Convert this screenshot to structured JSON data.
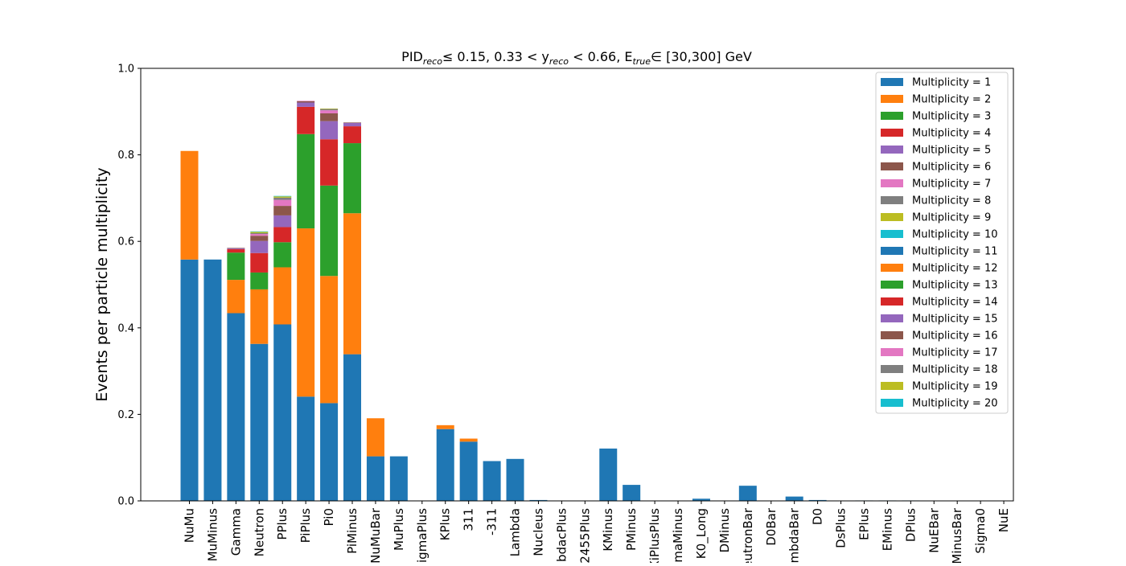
{
  "chart_data": {
    "type": "bar",
    "stacked": true,
    "title": {
      "pre": "PID",
      "pre_sub": "reco",
      "part1": "≤  0.15, 0.33 < y",
      "part1_sub": "reco",
      "part2": " < 0.66, E",
      "part2_sub": "true",
      "part3": "∈  [30,300] GeV"
    },
    "xlabel": "",
    "ylabel": "Events per particle multiplicity",
    "ylim": [
      0,
      1.0
    ],
    "yticks": [
      "0.0",
      "0.2",
      "0.4",
      "0.6",
      "0.8",
      "1.0"
    ],
    "grid": false,
    "legend_position": "top-right",
    "categories": [
      "NuMu",
      "MuMinus",
      "Gamma",
      "Neutron",
      "PPlus",
      "PiPlus",
      "Pi0",
      "PiMinus",
      "NuMuBar",
      "MuPlus",
      "SigmaPlus",
      "KPlus",
      "311",
      "-311",
      "Lambda",
      "Nucleus",
      "LambdacPlus",
      "2455Plus",
      "KMinus",
      "PMinus",
      "XiPlusPlus",
      "SigmaMinus",
      "K0_Long",
      "DMinus",
      "NeutronBar",
      "D0Bar",
      "LambdaBar",
      "D0",
      "DsPlus",
      "EPlus",
      "EMinus",
      "DPlus",
      "NuEBar",
      "XiMinusBar",
      "Sigma0",
      "NuE"
    ],
    "series": [
      {
        "name": "Multiplicity = 1",
        "color": "#1f77b4",
        "values": [
          0.558,
          0.558,
          0.434,
          0.363,
          0.408,
          0.241,
          0.226,
          0.339,
          0.103,
          0.103,
          0,
          0.166,
          0.137,
          0.092,
          0.097,
          0.002,
          0,
          0,
          0.121,
          0.037,
          0,
          0,
          0.005,
          0,
          0.035,
          0,
          0.01,
          0.002,
          0,
          0.001,
          0.001,
          0.001,
          0,
          0,
          0,
          0
        ]
      },
      {
        "name": "Multiplicity = 2",
        "color": "#ff7f0e",
        "values": [
          0.251,
          0,
          0.077,
          0.126,
          0.132,
          0.389,
          0.294,
          0.326,
          0.088,
          0,
          0,
          0.009,
          0.007,
          0,
          0,
          0,
          0,
          0,
          0,
          0,
          0,
          0,
          0,
          0,
          0,
          0,
          0,
          0,
          0,
          0,
          0,
          0,
          0,
          0,
          0,
          0
        ]
      },
      {
        "name": "Multiplicity = 3",
        "color": "#2ca02c",
        "values": [
          0,
          0,
          0.063,
          0.039,
          0.058,
          0.218,
          0.209,
          0.162,
          0,
          0,
          0,
          0,
          0,
          0,
          0,
          0,
          0,
          0,
          0,
          0,
          0,
          0,
          0,
          0,
          0,
          0,
          0,
          0,
          0,
          0,
          0,
          0,
          0,
          0,
          0,
          0
        ]
      },
      {
        "name": "Multiplicity = 4",
        "color": "#d62728",
        "values": [
          0,
          0,
          0.008,
          0.045,
          0.035,
          0.063,
          0.107,
          0.039,
          0,
          0,
          0,
          0,
          0,
          0,
          0,
          0,
          0,
          0,
          0,
          0,
          0,
          0,
          0,
          0,
          0,
          0,
          0,
          0,
          0,
          0,
          0,
          0,
          0,
          0,
          0,
          0
        ]
      },
      {
        "name": "Multiplicity = 5",
        "color": "#9467bd",
        "values": [
          0,
          0,
          0.002,
          0.028,
          0.027,
          0.01,
          0.042,
          0.008,
          0,
          0,
          0,
          0,
          0,
          0,
          0,
          0,
          0,
          0,
          0,
          0,
          0,
          0,
          0,
          0,
          0,
          0,
          0,
          0,
          0,
          0,
          0,
          0,
          0,
          0,
          0,
          0
        ]
      },
      {
        "name": "Multiplicity = 6",
        "color": "#8c564b",
        "values": [
          0,
          0,
          0.001,
          0.012,
          0.022,
          0.003,
          0.018,
          0.001,
          0,
          0,
          0,
          0,
          0,
          0,
          0,
          0,
          0,
          0,
          0,
          0,
          0,
          0,
          0,
          0,
          0,
          0,
          0,
          0,
          0,
          0,
          0,
          0,
          0,
          0,
          0,
          0
        ]
      },
      {
        "name": "Multiplicity = 7",
        "color": "#e377c2",
        "values": [
          0,
          0,
          0,
          0.004,
          0.014,
          0.001,
          0.007,
          0,
          0,
          0,
          0,
          0,
          0,
          0,
          0,
          0,
          0,
          0,
          0,
          0,
          0,
          0,
          0,
          0,
          0,
          0,
          0,
          0,
          0,
          0,
          0,
          0,
          0,
          0,
          0,
          0
        ]
      },
      {
        "name": "Multiplicity = 8",
        "color": "#7f7f7f",
        "values": [
          0,
          0,
          0,
          0.002,
          0.005,
          0,
          0.003,
          0,
          0,
          0,
          0,
          0,
          0,
          0,
          0,
          0,
          0,
          0,
          0,
          0,
          0,
          0,
          0,
          0,
          0,
          0,
          0,
          0,
          0,
          0,
          0,
          0,
          0,
          0,
          0,
          0
        ]
      },
      {
        "name": "Multiplicity = 9",
        "color": "#bcbd22",
        "values": [
          0,
          0,
          0,
          0.003,
          0.003,
          0,
          0.001,
          0,
          0,
          0,
          0,
          0,
          0,
          0,
          0,
          0,
          0,
          0,
          0,
          0,
          0,
          0,
          0,
          0,
          0,
          0,
          0,
          0,
          0,
          0,
          0,
          0,
          0,
          0,
          0,
          0
        ]
      },
      {
        "name": "Multiplicity = 10",
        "color": "#17becf",
        "values": [
          0,
          0,
          0,
          0.001,
          0.001,
          0,
          0,
          0,
          0,
          0,
          0,
          0,
          0,
          0,
          0,
          0,
          0,
          0,
          0,
          0,
          0,
          0,
          0,
          0,
          0,
          0,
          0,
          0,
          0,
          0,
          0,
          0,
          0,
          0,
          0,
          0
        ]
      },
      {
        "name": "Multiplicity = 11",
        "color": "#1f77b4",
        "values": [
          0,
          0,
          0,
          0,
          0,
          0,
          0,
          0,
          0,
          0,
          0,
          0,
          0,
          0,
          0,
          0,
          0,
          0,
          0,
          0,
          0,
          0,
          0,
          0,
          0,
          0,
          0,
          0,
          0,
          0,
          0,
          0,
          0,
          0,
          0,
          0
        ]
      },
      {
        "name": "Multiplicity = 12",
        "color": "#ff7f0e",
        "values": [
          0,
          0,
          0,
          0,
          0,
          0,
          0,
          0,
          0,
          0,
          0,
          0,
          0,
          0,
          0,
          0,
          0,
          0,
          0,
          0,
          0,
          0,
          0,
          0,
          0,
          0,
          0,
          0,
          0,
          0,
          0,
          0,
          0,
          0,
          0,
          0
        ]
      },
      {
        "name": "Multiplicity = 13",
        "color": "#2ca02c",
        "values": [
          0,
          0,
          0,
          0,
          0,
          0,
          0,
          0,
          0,
          0,
          0,
          0,
          0,
          0,
          0,
          0,
          0,
          0,
          0,
          0,
          0,
          0,
          0,
          0,
          0,
          0,
          0,
          0,
          0,
          0,
          0,
          0,
          0,
          0,
          0,
          0
        ]
      },
      {
        "name": "Multiplicity = 14",
        "color": "#d62728",
        "values": [
          0,
          0,
          0,
          0,
          0,
          0,
          0,
          0,
          0,
          0,
          0,
          0,
          0,
          0,
          0,
          0,
          0,
          0,
          0,
          0,
          0,
          0,
          0,
          0,
          0,
          0,
          0,
          0,
          0,
          0,
          0,
          0,
          0,
          0,
          0,
          0
        ]
      },
      {
        "name": "Multiplicity = 15",
        "color": "#9467bd",
        "values": [
          0,
          0,
          0,
          0,
          0,
          0,
          0,
          0,
          0,
          0,
          0,
          0,
          0,
          0,
          0,
          0,
          0,
          0,
          0,
          0,
          0,
          0,
          0,
          0,
          0,
          0,
          0,
          0,
          0,
          0,
          0,
          0,
          0,
          0,
          0,
          0
        ]
      },
      {
        "name": "Multiplicity = 16",
        "color": "#8c564b",
        "values": [
          0,
          0,
          0,
          0,
          0,
          0,
          0,
          0,
          0,
          0,
          0,
          0,
          0,
          0,
          0,
          0,
          0,
          0,
          0,
          0,
          0,
          0,
          0,
          0,
          0,
          0,
          0,
          0,
          0,
          0,
          0,
          0,
          0,
          0,
          0,
          0
        ]
      },
      {
        "name": "Multiplicity = 17",
        "color": "#e377c2",
        "values": [
          0,
          0,
          0,
          0,
          0,
          0,
          0,
          0,
          0,
          0,
          0,
          0,
          0,
          0,
          0,
          0,
          0,
          0,
          0,
          0,
          0,
          0,
          0,
          0,
          0,
          0,
          0,
          0,
          0,
          0,
          0,
          0,
          0,
          0,
          0,
          0
        ]
      },
      {
        "name": "Multiplicity = 18",
        "color": "#7f7f7f",
        "values": [
          0,
          0,
          0,
          0,
          0,
          0,
          0,
          0,
          0,
          0,
          0,
          0,
          0,
          0,
          0,
          0,
          0,
          0,
          0,
          0,
          0,
          0,
          0,
          0,
          0,
          0,
          0,
          0,
          0,
          0,
          0,
          0,
          0,
          0,
          0,
          0
        ]
      },
      {
        "name": "Multiplicity = 19",
        "color": "#bcbd22",
        "values": [
          0,
          0,
          0,
          0,
          0,
          0,
          0,
          0,
          0,
          0,
          0,
          0,
          0,
          0,
          0,
          0,
          0,
          0,
          0,
          0,
          0,
          0,
          0,
          0,
          0,
          0,
          0,
          0,
          0,
          0,
          0,
          0,
          0,
          0,
          0,
          0
        ]
      },
      {
        "name": "Multiplicity = 20",
        "color": "#17becf",
        "values": [
          0,
          0,
          0,
          0,
          0,
          0,
          0,
          0,
          0,
          0,
          0,
          0,
          0,
          0,
          0,
          0,
          0,
          0,
          0,
          0,
          0,
          0,
          0,
          0,
          0,
          0,
          0,
          0,
          0,
          0,
          0,
          0,
          0,
          0,
          0,
          0
        ]
      }
    ]
  }
}
